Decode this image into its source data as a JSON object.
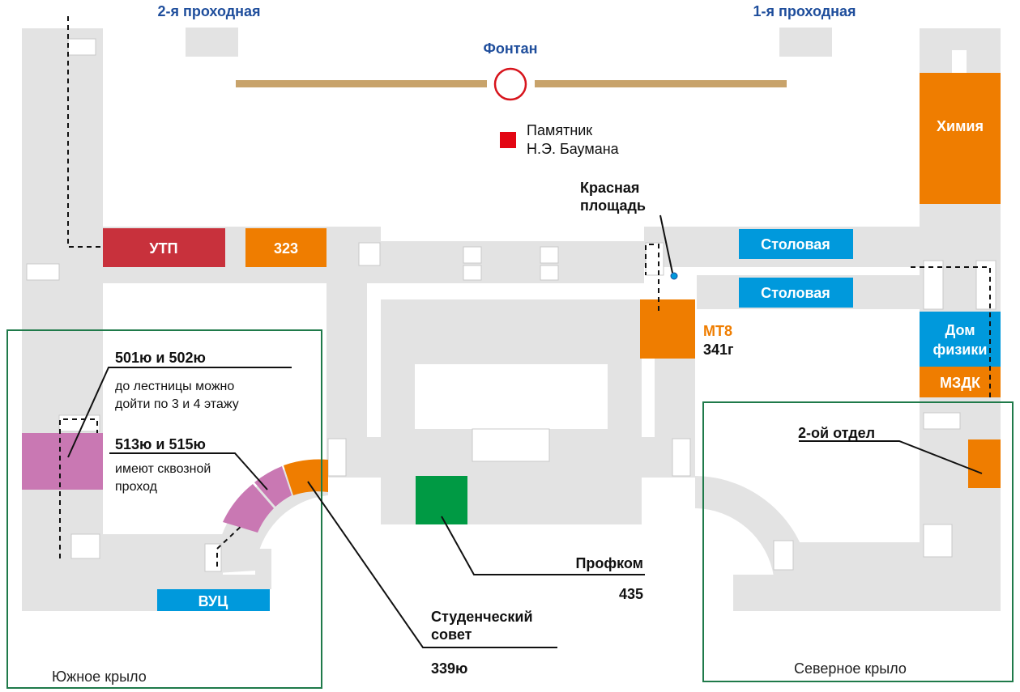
{
  "headers": {
    "gate2": "2-я проходная",
    "gate1": "1-я проходная",
    "fountain": "Фонтан"
  },
  "monument": [
    "Памятник",
    "Н.Э. Баумана"
  ],
  "rooms": {
    "utp": "УТП",
    "r323": "323",
    "canteen1": "Столовая",
    "canteen2": "Столовая",
    "chemistry": "Химия",
    "physics": [
      "Дом",
      "физики"
    ],
    "mzdk": "МЗДК",
    "vuc": "ВУЦ",
    "mt8": "МТ8",
    "mt8_room": "341г"
  },
  "callouts": {
    "red_square": [
      "Красная",
      "площадь"
    ],
    "r501": "501ю и 502ю",
    "r501_note": [
      "до лестницы можно",
      "дойти по 3 и 4 этажу"
    ],
    "r513": "513ю и 515ю",
    "r513_note": [
      "имеют сквозной",
      "проход"
    ],
    "dept2": "2-ой отдел",
    "profkom": "Профком",
    "profkom_room": "435",
    "council": [
      "Студенческий",
      "совет"
    ],
    "council_room": "339ю"
  },
  "wings": {
    "south": "Южное крыло",
    "north": "Северное крыло"
  },
  "colors": {
    "building": "#e3e3e3",
    "orange": "#ef7d00",
    "blue": "#0099dc",
    "red": "#c8313c",
    "pink": "#c978b3",
    "green": "#009a44",
    "heading_blue": "#1f4e9c",
    "wing_border": "#1f7a4a",
    "fountain_ring": "#d7141c",
    "bar": "#c8a36b"
  }
}
